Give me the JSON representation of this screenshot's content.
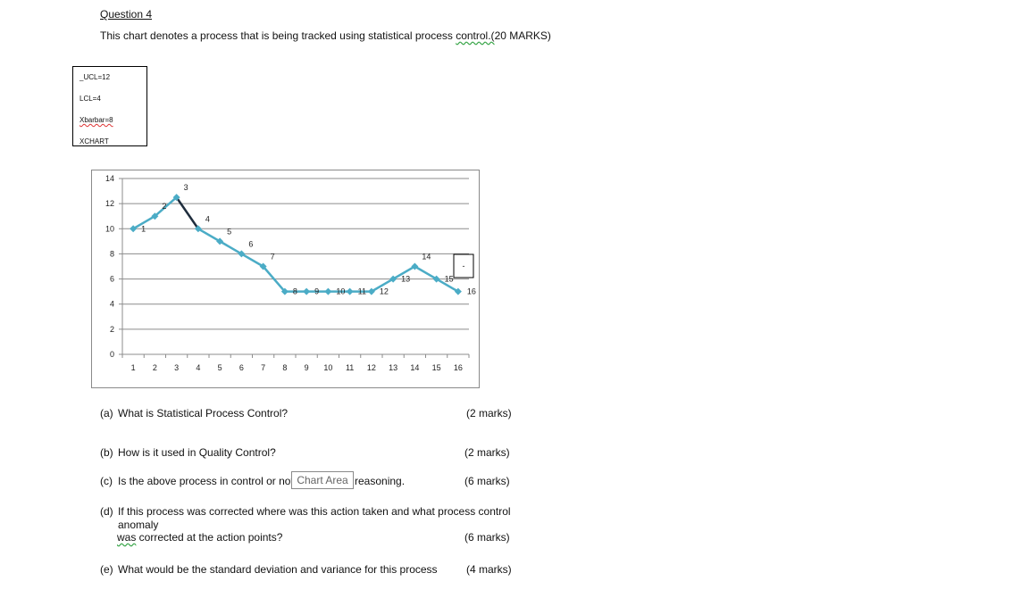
{
  "question": {
    "heading": "Question 4",
    "intro_main": "This chart denotes a process that is being tracked using statistical process ",
    "intro_tail": "control.(",
    "intro_marks": "20 MARKS)"
  },
  "limits": {
    "ucl": "_UCL=12",
    "lcl": "LCL=4",
    "xbar": "Xbarbar=8",
    "chart_name": "XCHART"
  },
  "chart_data": {
    "type": "line",
    "x": [
      1,
      2,
      3,
      4,
      5,
      6,
      7,
      8,
      9,
      10,
      11,
      12,
      13,
      14,
      15,
      16
    ],
    "categories": [
      "1",
      "2",
      "3",
      "4",
      "5",
      "6",
      "7",
      "8",
      "9",
      "10",
      "11",
      "12",
      "13",
      "14",
      "15",
      "16"
    ],
    "series": [
      {
        "values": [
          10,
          11,
          12.5,
          10,
          9,
          8,
          7,
          5,
          5,
          5,
          5,
          5,
          6,
          7,
          6,
          5
        ],
        "point_labels": [
          "1",
          "2",
          "3",
          "4",
          "5",
          "6",
          "7",
          "8",
          "9",
          "10",
          "11",
          "12",
          "13",
          "14",
          "15",
          "16"
        ],
        "color": "#4bacc6",
        "highlight_segment_color": "#1f2d3d"
      }
    ],
    "yticks": [
      "0",
      "2",
      "4",
      "6",
      "8",
      "10",
      "12",
      "14"
    ],
    "ylim": [
      0,
      14
    ],
    "grid": true,
    "legend_marker": "-",
    "legend_position": "right"
  },
  "questions": [
    {
      "label": "(a)",
      "text": "What is Statistical Process Control?",
      "marks": "(2 marks)"
    },
    {
      "label": "(b)",
      "text": "How is it used in Quality Control?",
      "marks": "(2 marks)"
    },
    {
      "label": "(c)",
      "text": "Is the above process in control or not?",
      "text_tail": "reasoning.",
      "marks": "(6 marks)"
    },
    {
      "label": "(d)",
      "text": "If this process was corrected where was this action taken and what process control",
      "line2": "anomaly",
      "line3_wavy": "was",
      "line3": " corrected at the action points?",
      "marks": "(6 marks)"
    },
    {
      "label": "(e)",
      "text": "What would be the standard deviation and variance for this process",
      "marks": "(4 marks)"
    }
  ],
  "tooltip": "Chart Area"
}
